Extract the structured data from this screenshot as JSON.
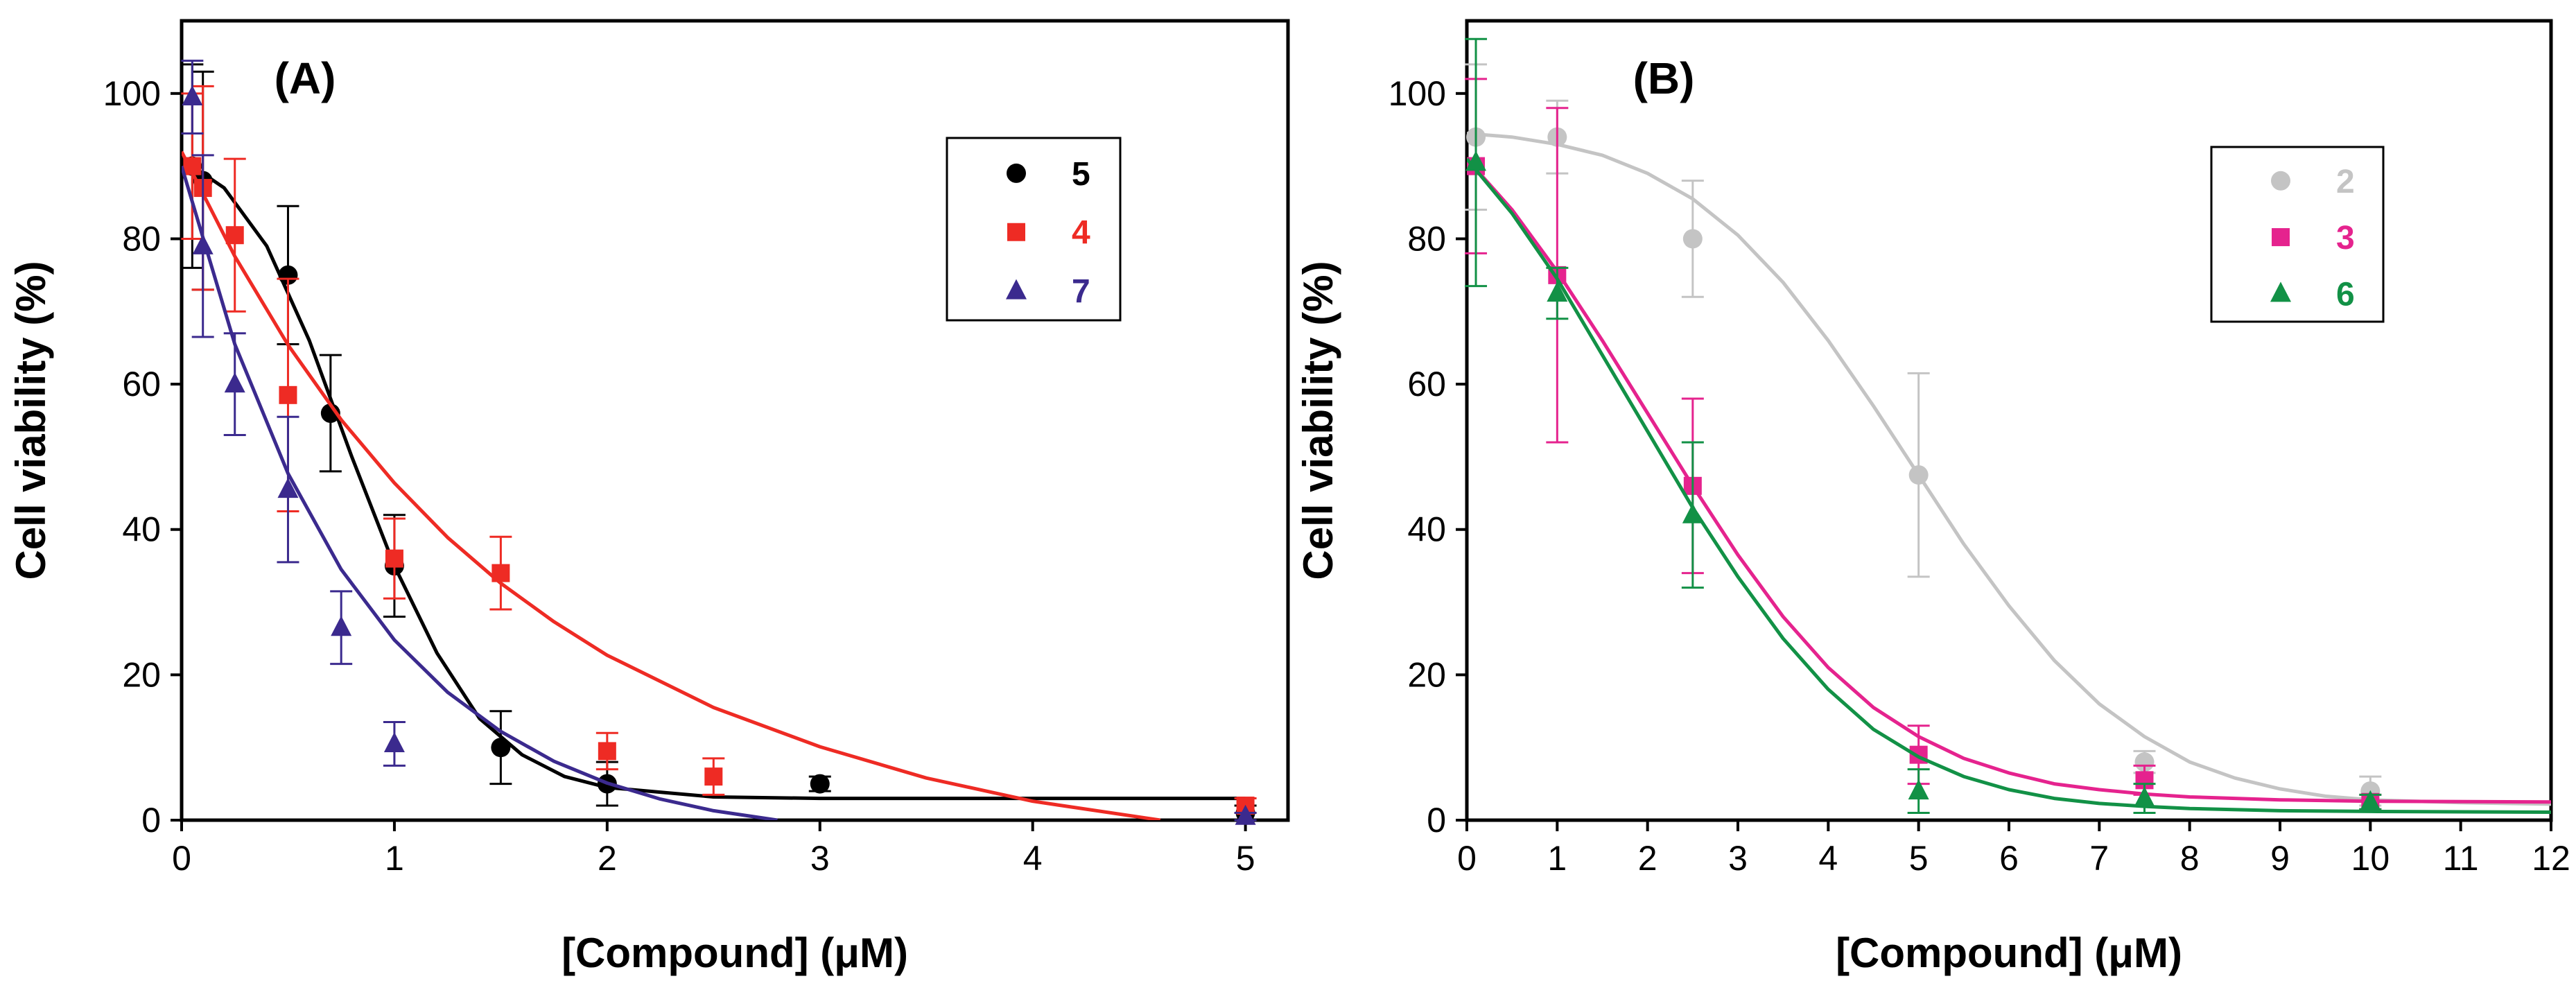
{
  "chart_data": [
    {
      "type": "scatter",
      "panel_label": "(A)",
      "xlabel": "[Compound] (μM)",
      "ylabel": "Cell viability (%)",
      "xlim": [
        0,
        5.2
      ],
      "ylim": [
        0,
        110
      ],
      "xticks": [
        0,
        1,
        2,
        3,
        4,
        5
      ],
      "yticks": [
        0,
        20,
        40,
        60,
        80,
        100
      ],
      "grid": false,
      "legend_position": "top-right",
      "series": [
        {
          "name": "5",
          "color": "#000000",
          "marker": "circle",
          "points": [
            {
              "x": 0.05,
              "y": 90,
              "err": 14
            },
            {
              "x": 0.1,
              "y": 88,
              "err": 15
            },
            {
              "x": 0.5,
              "y": 75,
              "err": 9.5
            },
            {
              "x": 0.7,
              "y": 56,
              "err": 8
            },
            {
              "x": 1.0,
              "y": 35,
              "err": 7
            },
            {
              "x": 1.5,
              "y": 10,
              "err": 5
            },
            {
              "x": 2.0,
              "y": 5,
              "err": 3
            },
            {
              "x": 3.0,
              "y": 5,
              "err": 1
            },
            {
              "x": 5.0,
              "y": 1,
              "err": 1
            }
          ],
          "fit": [
            [
              0,
              91
            ],
            [
              0.2,
              87
            ],
            [
              0.4,
              79
            ],
            [
              0.6,
              66
            ],
            [
              0.8,
              50
            ],
            [
              1.0,
              35
            ],
            [
              1.2,
              23
            ],
            [
              1.4,
              14
            ],
            [
              1.6,
              9
            ],
            [
              1.8,
              6
            ],
            [
              2.0,
              4.5
            ],
            [
              2.5,
              3.2
            ],
            [
              3,
              3
            ],
            [
              4,
              3
            ],
            [
              5,
              3
            ]
          ]
        },
        {
          "name": "4",
          "color": "#ee2b24",
          "marker": "square",
          "points": [
            {
              "x": 0.05,
              "y": 90,
              "err": 10
            },
            {
              "x": 0.1,
              "y": 87,
              "err": 14
            },
            {
              "x": 0.25,
              "y": 80.5,
              "err": 10.5
            },
            {
              "x": 0.5,
              "y": 58.5,
              "err": 16
            },
            {
              "x": 1.0,
              "y": 36,
              "err": 5.5
            },
            {
              "x": 1.5,
              "y": 34,
              "err": 5
            },
            {
              "x": 2.0,
              "y": 9.5,
              "err": 2.5
            },
            {
              "x": 2.5,
              "y": 6,
              "err": 2.5
            },
            {
              "x": 5.0,
              "y": 2,
              "err": 1
            }
          ],
          "fit": [
            [
              0,
              92
            ],
            [
              0.25,
              77.6
            ],
            [
              0.5,
              65.4
            ],
            [
              0.75,
              55.1
            ],
            [
              1.0,
              46.4
            ],
            [
              1.25,
              38.9
            ],
            [
              1.5,
              32.6
            ],
            [
              1.75,
              27.3
            ],
            [
              2.0,
              22.7
            ],
            [
              2.5,
              15.5
            ],
            [
              3.0,
              10.1
            ],
            [
              3.5,
              5.8
            ],
            [
              4.0,
              2.6
            ],
            [
              4.6,
              0
            ]
          ]
        },
        {
          "name": "7",
          "color": "#3b2a8e",
          "marker": "triangle",
          "points": [
            {
              "x": 0.05,
              "y": 99.5,
              "err": 5
            },
            {
              "x": 0.1,
              "y": 79,
              "err": 12.5
            },
            {
              "x": 0.25,
              "y": 60,
              "err": 7
            },
            {
              "x": 0.5,
              "y": 45.5,
              "err": 10
            },
            {
              "x": 0.75,
              "y": 26.5,
              "err": 5
            },
            {
              "x": 1.0,
              "y": 10.5,
              "err": 3
            },
            {
              "x": 5.0,
              "y": 0.5,
              "err": 0.5
            }
          ],
          "fit": [
            [
              0,
              90
            ],
            [
              0.25,
              65.5
            ],
            [
              0.5,
              47.7
            ],
            [
              0.75,
              34.5
            ],
            [
              1.0,
              24.8
            ],
            [
              1.25,
              17.6
            ],
            [
              1.5,
              12.2
            ],
            [
              1.75,
              8.1
            ],
            [
              2.0,
              5.1
            ],
            [
              2.25,
              2.9
            ],
            [
              2.5,
              1.3
            ],
            [
              2.8,
              0
            ]
          ]
        }
      ]
    },
    {
      "type": "scatter",
      "panel_label": "(B)",
      "xlabel": "[Compound] (μM)",
      "ylabel": "Cell viability (%)",
      "xlim": [
        0,
        12
      ],
      "ylim": [
        0,
        110
      ],
      "xticks": [
        0,
        1,
        2,
        3,
        4,
        5,
        6,
        7,
        8,
        9,
        10,
        11,
        12
      ],
      "yticks": [
        0,
        20,
        40,
        60,
        80,
        100
      ],
      "grid": false,
      "legend_position": "top-right",
      "series": [
        {
          "name": "2",
          "color": "#c4c4c4",
          "marker": "circle",
          "points": [
            {
              "x": 0.1,
              "y": 94,
              "err": 10
            },
            {
              "x": 1.0,
              "y": 94,
              "err": 5
            },
            {
              "x": 2.5,
              "y": 80,
              "err": 8
            },
            {
              "x": 5.0,
              "y": 47.5,
              "err": 14
            },
            {
              "x": 7.5,
              "y": 8,
              "err": 1.5
            },
            {
              "x": 10.0,
              "y": 4,
              "err": 2
            }
          ],
          "fit": [
            [
              0,
              94.5
            ],
            [
              0.5,
              94
            ],
            [
              1,
              93
            ],
            [
              1.5,
              91.5
            ],
            [
              2,
              89
            ],
            [
              2.5,
              85.5
            ],
            [
              3,
              80.5
            ],
            [
              3.5,
              74
            ],
            [
              4,
              66
            ],
            [
              4.5,
              57
            ],
            [
              5,
              47.5
            ],
            [
              5.5,
              38
            ],
            [
              6,
              29.5
            ],
            [
              6.5,
              22
            ],
            [
              7,
              16
            ],
            [
              7.5,
              11.5
            ],
            [
              8,
              8
            ],
            [
              8.5,
              5.8
            ],
            [
              9,
              4.3
            ],
            [
              9.5,
              3.3
            ],
            [
              10,
              2.8
            ],
            [
              11,
              2.4
            ],
            [
              12,
              2.2
            ]
          ]
        },
        {
          "name": "3",
          "color": "#e5238e",
          "marker": "square",
          "points": [
            {
              "x": 0.1,
              "y": 90,
              "err": 12
            },
            {
              "x": 1.0,
              "y": 75,
              "err": 23
            },
            {
              "x": 2.5,
              "y": 46,
              "err": 12
            },
            {
              "x": 5.0,
              "y": 9,
              "err": 4
            },
            {
              "x": 7.5,
              "y": 5.5,
              "err": 2
            },
            {
              "x": 10.0,
              "y": 2.5,
              "err": 1
            }
          ],
          "fit": [
            [
              0,
              91
            ],
            [
              0.5,
              84
            ],
            [
              1,
              75.5
            ],
            [
              1.5,
              66
            ],
            [
              2,
              56
            ],
            [
              2.5,
              46
            ],
            [
              3,
              36.5
            ],
            [
              3.5,
              28
            ],
            [
              4,
              21
            ],
            [
              4.5,
              15.5
            ],
            [
              5,
              11.5
            ],
            [
              5.5,
              8.5
            ],
            [
              6,
              6.5
            ],
            [
              6.5,
              5
            ],
            [
              7,
              4.2
            ],
            [
              7.5,
              3.6
            ],
            [
              8,
              3.2
            ],
            [
              9,
              2.8
            ],
            [
              10,
              2.6
            ],
            [
              12,
              2.5
            ]
          ]
        },
        {
          "name": "6",
          "color": "#129146",
          "marker": "triangle",
          "points": [
            {
              "x": 0.1,
              "y": 90.5,
              "err": 17
            },
            {
              "x": 1.0,
              "y": 72.5,
              "err": 3.5
            },
            {
              "x": 2.5,
              "y": 42,
              "err": 10
            },
            {
              "x": 5.0,
              "y": 4,
              "err": 3
            },
            {
              "x": 7.5,
              "y": 3,
              "err": 2
            },
            {
              "x": 10.0,
              "y": 2.5,
              "err": 1
            }
          ],
          "fit": [
            [
              0,
              91
            ],
            [
              0.5,
              83.5
            ],
            [
              1,
              74.5
            ],
            [
              1.5,
              64
            ],
            [
              2,
              53.5
            ],
            [
              2.5,
              43
            ],
            [
              3,
              33.5
            ],
            [
              3.5,
              25
            ],
            [
              4,
              18
            ],
            [
              4.5,
              12.5
            ],
            [
              5,
              8.7
            ],
            [
              5.5,
              6
            ],
            [
              6,
              4.2
            ],
            [
              6.5,
              3
            ],
            [
              7,
              2.3
            ],
            [
              7.5,
              1.9
            ],
            [
              8,
              1.6
            ],
            [
              9,
              1.3
            ],
            [
              10,
              1.2
            ],
            [
              12,
              1.1
            ]
          ]
        }
      ]
    }
  ]
}
